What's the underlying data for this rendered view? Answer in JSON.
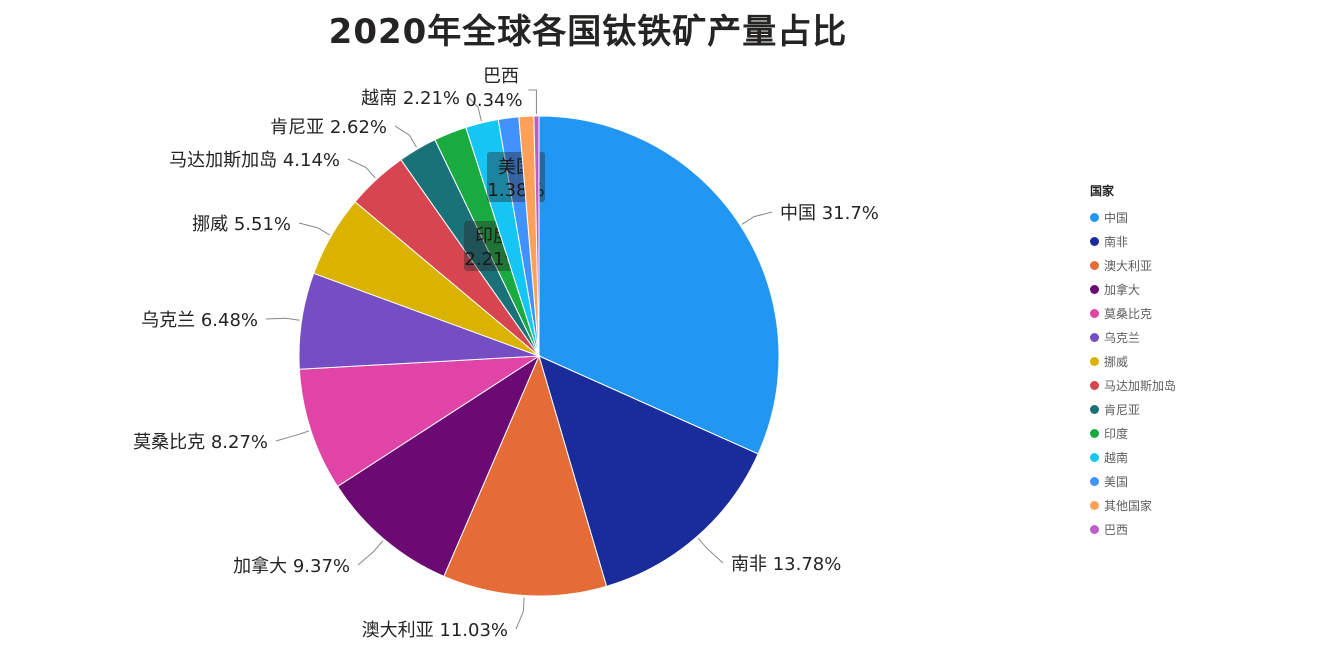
{
  "chart_data": {
    "type": "pie",
    "title": "2020年全球各国钛铁矿产量占比",
    "legend_title": "国家",
    "legend_position": "right",
    "slices": [
      {
        "name": "中国",
        "value": 31.7,
        "label": "31.7%",
        "color": "#2196F3"
      },
      {
        "name": "南非",
        "value": 13.78,
        "label": "13.78%",
        "color": "#1A2B9B"
      },
      {
        "name": "澳大利亚",
        "value": 11.03,
        "label": "11.03%",
        "color": "#E66C37"
      },
      {
        "name": "加拿大",
        "value": 9.37,
        "label": "9.37%",
        "color": "#6B0A73"
      },
      {
        "name": "莫桑比克",
        "value": 8.27,
        "label": "8.27%",
        "color": "#E044A7"
      },
      {
        "name": "乌克兰",
        "value": 6.48,
        "label": "6.48%",
        "color": "#744EC2"
      },
      {
        "name": "挪威",
        "value": 5.51,
        "label": "5.51%",
        "color": "#D9B300"
      },
      {
        "name": "马达加斯加岛",
        "value": 4.14,
        "label": "4.14%",
        "color": "#D64550"
      },
      {
        "name": "肯尼亚",
        "value": 2.62,
        "label": "2.62%",
        "color": "#197278"
      },
      {
        "name": "印度",
        "value": 2.21,
        "label": "2.21%",
        "color": "#1AAB40"
      },
      {
        "name": "越南",
        "value": 2.21,
        "label": "2.21%",
        "color": "#15C6F4"
      },
      {
        "name": "美国",
        "value": 1.38,
        "label": "1.38%",
        "color": "#4092FF"
      },
      {
        "name": "其他国家",
        "value": 1.0,
        "label": "",
        "color": "#FFA058"
      },
      {
        "name": "巴西",
        "value": 0.34,
        "label": "0.34%",
        "color": "#BE5DC9"
      }
    ]
  }
}
